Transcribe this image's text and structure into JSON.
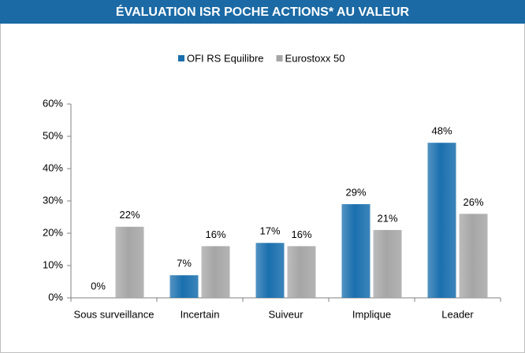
{
  "chart_data": {
    "type": "bar",
    "title": "ÉVALUATION ISR POCHE ACTIONS* AU VALEUR",
    "categories": [
      "Sous surveillance",
      "Incertain",
      "Suiveur",
      "Implique",
      "Leader"
    ],
    "series": [
      {
        "name": "OFI RS Equilibre",
        "color": "#1a6fae",
        "values": [
          0,
          7,
          17,
          29,
          48
        ],
        "value_labels": [
          "0%",
          "7%",
          "17%",
          "29%",
          "48%"
        ]
      },
      {
        "name": "Eurostoxx 50",
        "color": "#a6a6a6",
        "values": [
          22,
          16,
          16,
          21,
          26
        ],
        "value_labels": [
          "22%",
          "16%",
          "16%",
          "21%",
          "26%"
        ]
      }
    ],
    "ylim": [
      0,
      60
    ],
    "yticks": [
      {
        "value": 0,
        "label": "0%"
      },
      {
        "value": 10,
        "label": "10%"
      },
      {
        "value": 20,
        "label": "20%"
      },
      {
        "value": 30,
        "label": "30%"
      },
      {
        "value": 40,
        "label": "40%"
      },
      {
        "value": 50,
        "label": "50%"
      },
      {
        "value": 60,
        "label": "60%"
      }
    ],
    "legend": "top"
  }
}
